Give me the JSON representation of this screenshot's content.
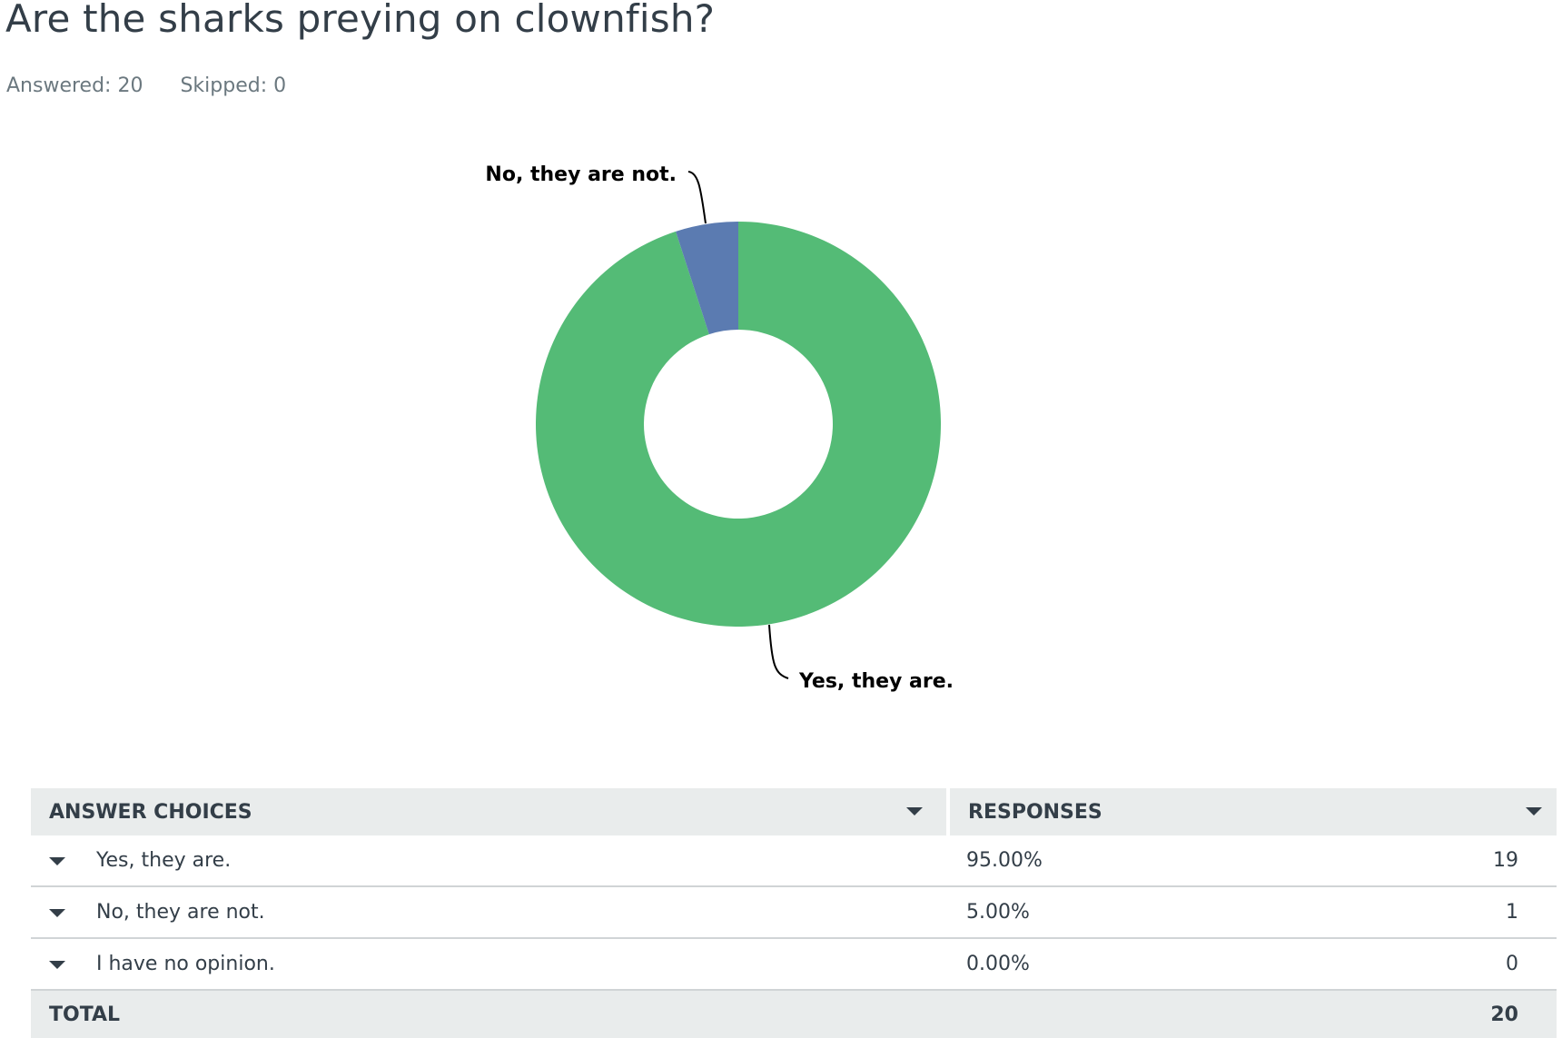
{
  "question": {
    "title": "Are the sharks preying on clownfish?",
    "answered_label": "Answered:",
    "answered_value": "20",
    "skipped_label": "Skipped:",
    "skipped_value": "0"
  },
  "colors": {
    "yes": "#54bb76",
    "no": "#5b7bb1",
    "none": "#e0e0e0",
    "leader_line": "#000000"
  },
  "chart_data": {
    "type": "pie",
    "style": "donut",
    "categories": [
      "Yes, they are.",
      "No, they are not.",
      "I have no opinion."
    ],
    "values": [
      95,
      5,
      0
    ],
    "counts": [
      19,
      1,
      0
    ],
    "labels_shown": [
      "Yes, they are.",
      "No, they are not."
    ],
    "title": "",
    "legend": "none"
  },
  "table": {
    "header_choices": "ANSWER CHOICES",
    "header_responses": "RESPONSES",
    "rows": [
      {
        "choice": "Yes, they are.",
        "percent": "95.00%",
        "count": "19"
      },
      {
        "choice": "No, they are not.",
        "percent": "5.00%",
        "count": "1"
      },
      {
        "choice": "I have no opinion.",
        "percent": "0.00%",
        "count": "0"
      }
    ],
    "total_label": "TOTAL",
    "total_count": "20"
  }
}
